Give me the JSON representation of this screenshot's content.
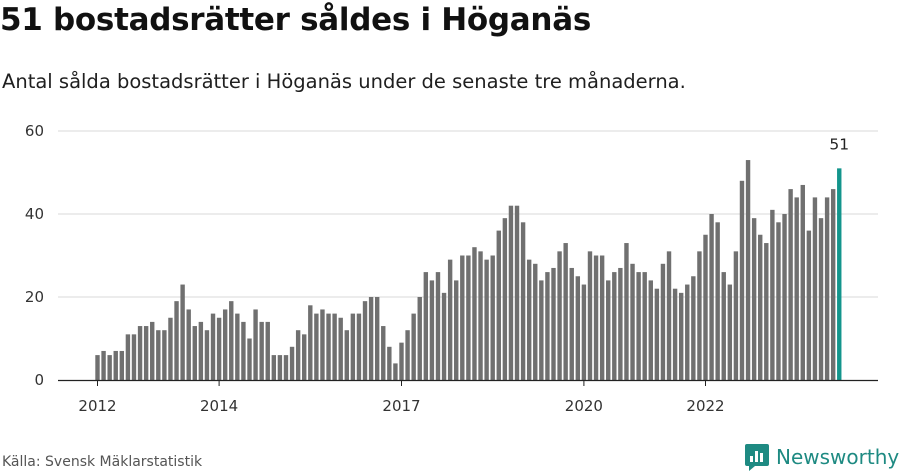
{
  "header": {
    "title": "51 bostadsrätter såldes i Höganäs",
    "subtitle": "Antal sålda bostadsrätter i Höganäs under de senaste tre månaderna."
  },
  "footer": {
    "source": "Källa: Svensk Mäklarstatistik",
    "brand": "Newsworthy"
  },
  "colors": {
    "bar": "#707070",
    "highlight": "#13958c",
    "grid": "#d9d9d9",
    "axis": "#222222",
    "brand": "#1e8a82"
  },
  "chart_data": {
    "type": "bar",
    "ylim": [
      0,
      60
    ],
    "yticks": [
      0,
      20,
      40,
      60
    ],
    "x_start": "2012-01",
    "x_ticks": [
      {
        "label": "2012",
        "index": 0
      },
      {
        "label": "2014",
        "index": 20
      },
      {
        "label": "2017",
        "index": 50
      },
      {
        "label": "2020",
        "index": 80
      },
      {
        "label": "2022",
        "index": 100
      }
    ],
    "values": [
      6,
      7,
      6,
      7,
      7,
      11,
      11,
      13,
      13,
      14,
      12,
      12,
      15,
      19,
      23,
      17,
      13,
      14,
      12,
      16,
      15,
      17,
      19,
      16,
      14,
      10,
      17,
      14,
      14,
      6,
      6,
      6,
      8,
      12,
      11,
      18,
      16,
      17,
      16,
      16,
      15,
      12,
      16,
      16,
      19,
      20,
      20,
      13,
      8,
      4,
      9,
      12,
      16,
      20,
      26,
      24,
      26,
      21,
      29,
      24,
      30,
      30,
      32,
      31,
      29,
      30,
      36,
      39,
      42,
      42,
      38,
      29,
      28,
      24,
      26,
      27,
      31,
      33,
      27,
      25,
      23,
      31,
      30,
      30,
      24,
      26,
      27,
      33,
      28,
      26,
      26,
      24,
      22,
      28,
      31,
      22,
      21,
      23,
      25,
      31,
      35,
      40,
      38,
      26,
      23,
      31,
      48,
      53,
      39,
      35,
      33,
      41,
      38,
      40,
      46,
      44,
      47,
      36,
      44,
      39,
      44,
      46,
      51
    ],
    "highlight_index": 122,
    "highlight_label": "51"
  }
}
